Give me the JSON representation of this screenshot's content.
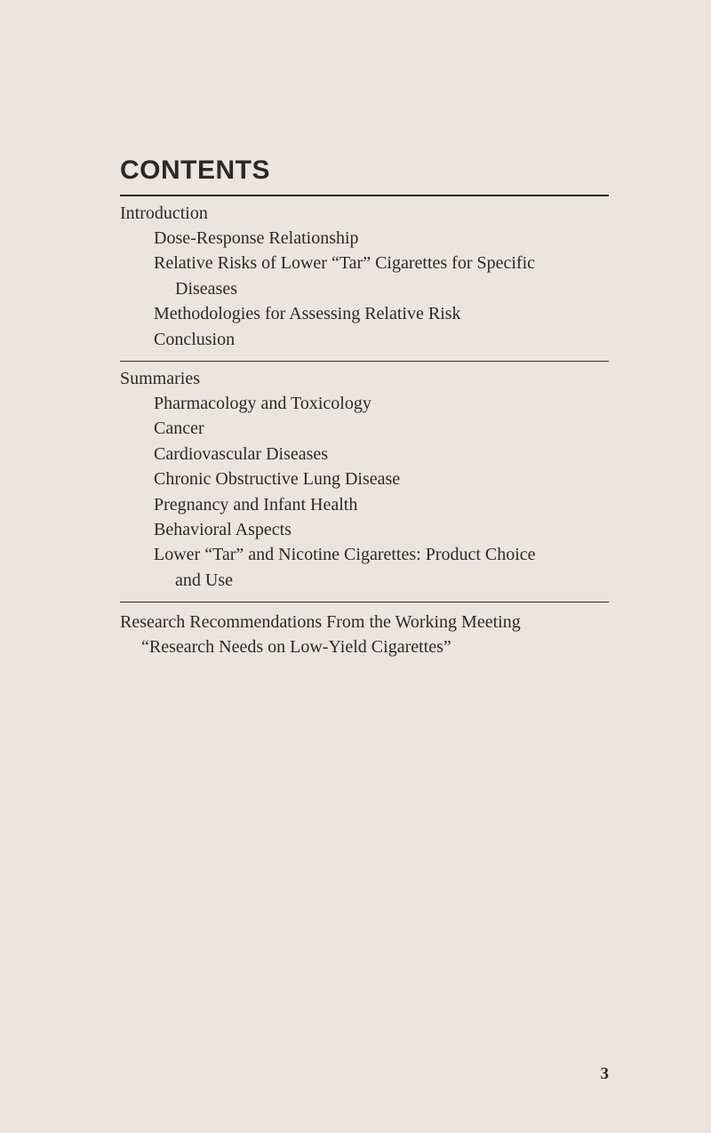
{
  "page": {
    "title": "CONTENTS",
    "page_number": "3",
    "background_color": "#eae6dd",
    "text_color": "#2a2a2a"
  },
  "sections": {
    "introduction": {
      "heading": "Introduction",
      "items": {
        "dose_response": "Dose-Response Relationship",
        "relative_risks_line1": "Relative Risks of Lower “Tar” Cigarettes for Specific",
        "relative_risks_line2": "Diseases",
        "methodologies": "Methodologies for Assessing Relative Risk",
        "conclusion": "Conclusion"
      }
    },
    "summaries": {
      "heading": "Summaries",
      "items": {
        "pharmacology": "Pharmacology and Toxicology",
        "cancer": "Cancer",
        "cardiovascular": "Cardiovascular Diseases",
        "chronic": "Chronic Obstructive Lung Disease",
        "pregnancy": "Pregnancy and Infant Health",
        "behavioral": "Behavioral Aspects",
        "lower_tar_line1": "Lower “Tar” and Nicotine Cigarettes: Product Choice",
        "lower_tar_line2": "and Use"
      }
    },
    "research": {
      "heading": "Research Recommendations From the Working Meeting",
      "sub": "“Research Needs on Low-Yield Cigarettes”"
    }
  }
}
